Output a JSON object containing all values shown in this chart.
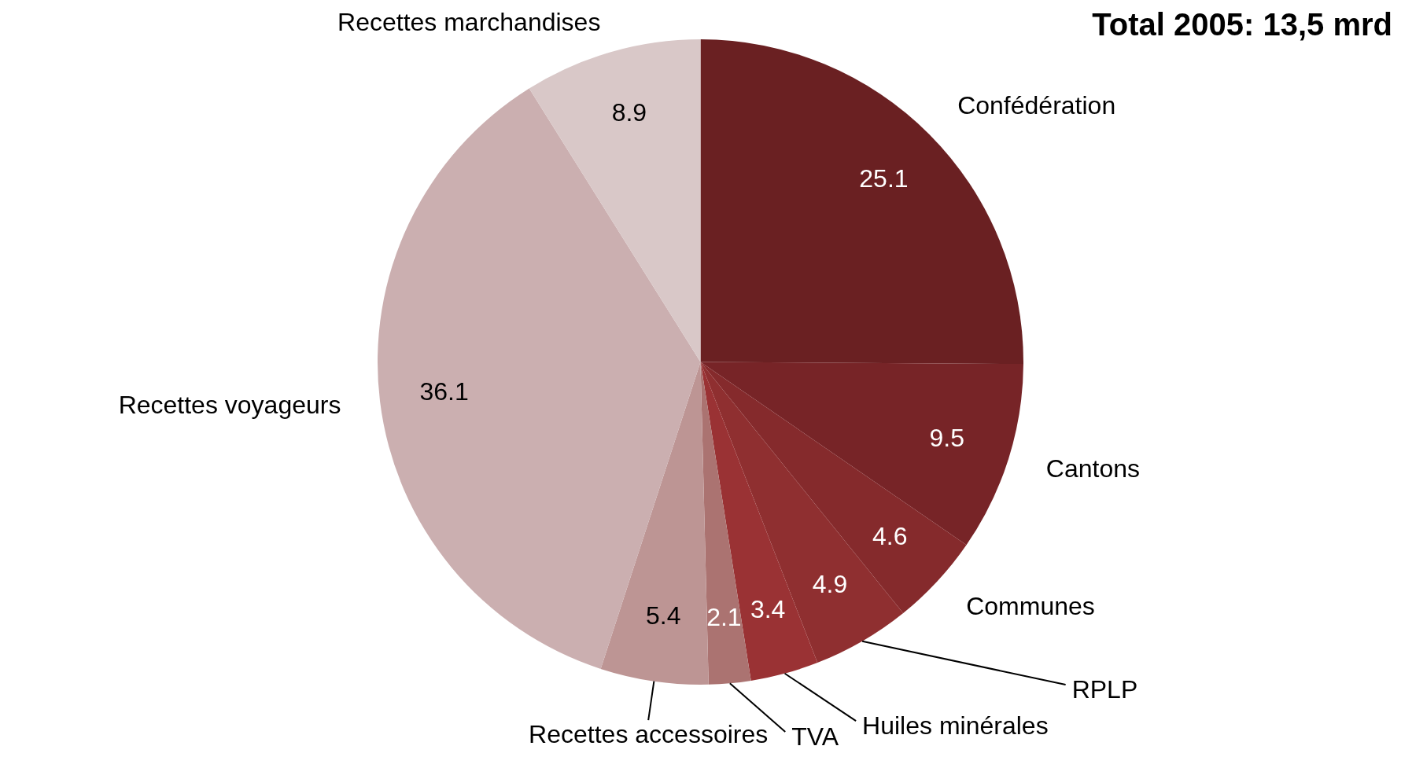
{
  "chart_data": {
    "type": "pie",
    "title": "Total 2005: 13,5 mrd",
    "categories": [
      "Confédération",
      "Cantons",
      "Communes",
      "RPLP",
      "Huiles minérales",
      "TVA",
      "Recettes accessoires",
      "Recettes voyageurs",
      "Recettes marchandises"
    ],
    "values": [
      25.1,
      9.5,
      4.6,
      4.9,
      3.4,
      2.1,
      5.4,
      36.1,
      8.9
    ],
    "colors": [
      "#6a2022",
      "#772427",
      "#852a2c",
      "#8f2f30",
      "#9a3234",
      "#ab7371",
      "#bd9594",
      "#cbafb0",
      "#d9c8c8"
    ],
    "data_labels": true,
    "legend": false
  }
}
